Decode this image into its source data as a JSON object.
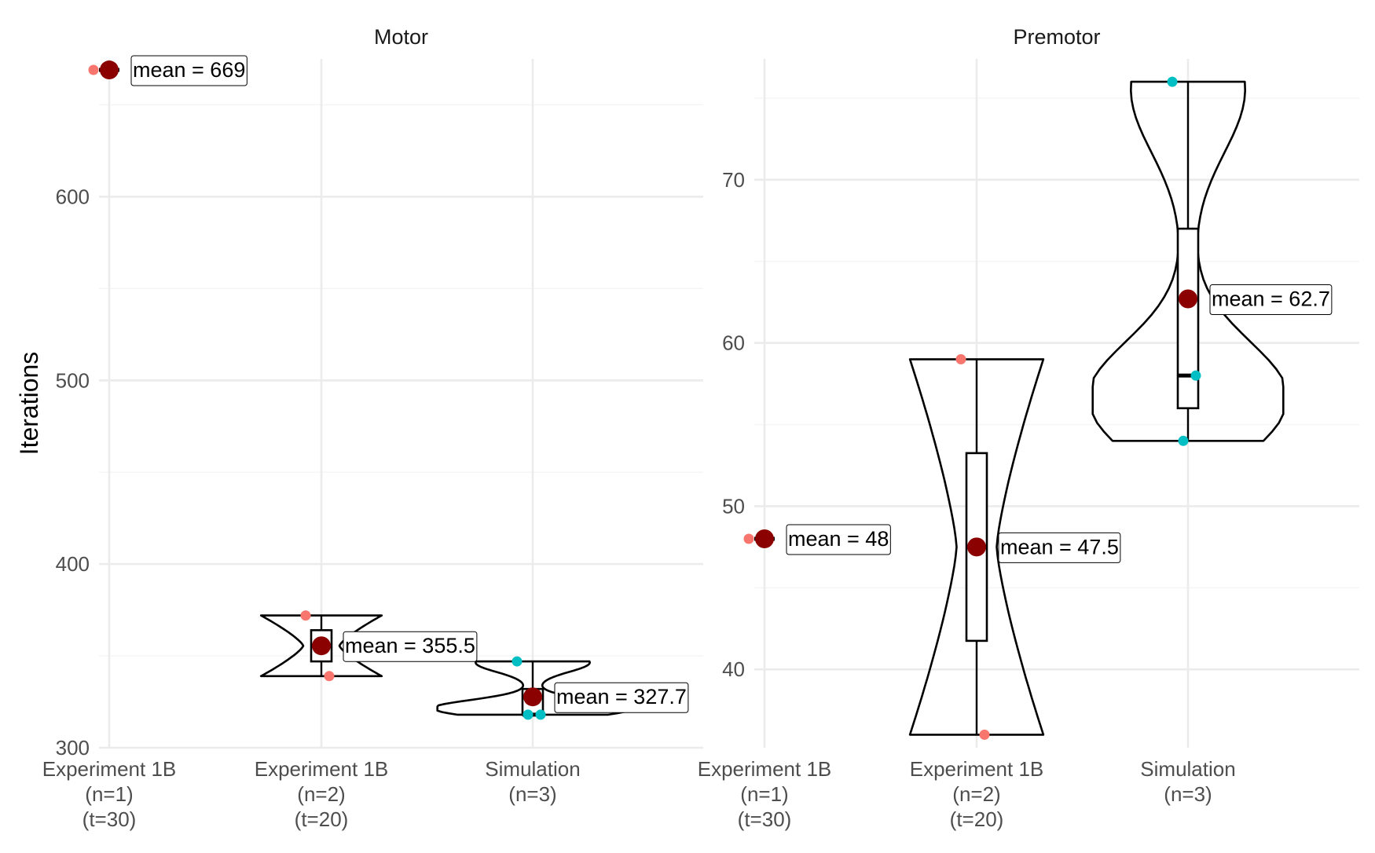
{
  "chart_data": {
    "type": "violin",
    "ylabel": "Iterations",
    "categories": [
      [
        "Experiment 1B",
        "(n=1)",
        "(t=30)"
      ],
      [
        "Experiment 1B",
        "(n=2)",
        "(t=20)"
      ],
      [
        "Simulation",
        "(n=3)"
      ]
    ],
    "colors": {
      "mean_marker": "#8b0000",
      "experiment_points": "#f8766d",
      "simulation_points": "#00bfc4",
      "outline": "#000000",
      "grid_major": "#ebebeb",
      "grid_minor": "#f4f4f4"
    },
    "panels": [
      {
        "title": "Motor",
        "ylim": [
          300,
          675
        ],
        "yticks": [
          300,
          400,
          500,
          600
        ],
        "groups": [
          {
            "points": [
              {
                "y": 669,
                "color": "experiment"
              }
            ],
            "box": null,
            "violin": null,
            "mean": 669,
            "mean_label": "mean = 669"
          },
          {
            "points": [
              {
                "y": 372,
                "color": "experiment"
              },
              {
                "y": 339,
                "color": "experiment"
              }
            ],
            "box": {
              "q1": 347,
              "median": 355.5,
              "q3": 364
            },
            "violin": {
              "ymin": 339,
              "ymax": 372,
              "shape": "hourglass",
              "width": 0.57
            },
            "mean": 355.5,
            "mean_label": "mean = 355.5"
          },
          {
            "points": [
              {
                "y": 347,
                "color": "simulation"
              },
              {
                "y": 318,
                "color": "simulation"
              },
              {
                "y": 318,
                "color": "simulation"
              }
            ],
            "box": {
              "q1": 318,
              "median": 318,
              "q3": 332
            },
            "violin": {
              "ymin": 318,
              "ymax": 347,
              "shape": "bottom-heavy",
              "width": 0.9
            },
            "mean": 327.7,
            "mean_label": "mean = 327.7"
          }
        ]
      },
      {
        "title": "Premotor",
        "ylim": [
          35.2,
          77.4
        ],
        "yticks": [
          40,
          50,
          60,
          70
        ],
        "groups": [
          {
            "points": [
              {
                "y": 48,
                "color": "experiment"
              }
            ],
            "box": null,
            "violin": null,
            "mean": 48,
            "mean_label": "mean = 48"
          },
          {
            "points": [
              {
                "y": 59,
                "color": "experiment"
              },
              {
                "y": 36,
                "color": "experiment"
              }
            ],
            "box": {
              "q1": 41.75,
              "median": 47.5,
              "q3": 53.25
            },
            "violin": {
              "ymin": 36,
              "ymax": 59,
              "shape": "hourglass",
              "width": 0.63
            },
            "mean": 47.5,
            "mean_label": "mean = 47.5"
          },
          {
            "points": [
              {
                "y": 76,
                "color": "simulation"
              },
              {
                "y": 58,
                "color": "simulation"
              },
              {
                "y": 54,
                "color": "simulation"
              }
            ],
            "box": {
              "q1": 56,
              "median": 58,
              "q3": 67
            },
            "violin": {
              "ymin": 54,
              "ymax": 76,
              "shape": "bottom-heavy",
              "width": 0.9
            },
            "mean": 62.7,
            "mean_label": "mean = 62.7"
          }
        ]
      }
    ]
  }
}
